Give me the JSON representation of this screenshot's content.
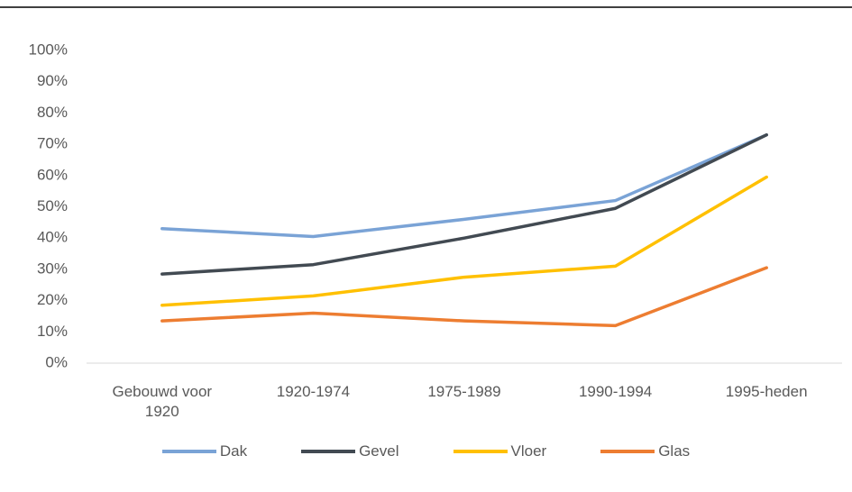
{
  "chart_data": {
    "type": "line",
    "categories": [
      "Gebouwd voor 1920",
      "1920-1974",
      "1975-1989",
      "1990-1994",
      "1995-heden"
    ],
    "series": [
      {
        "name": "Dak",
        "color": "#7aa3d6",
        "values": [
          43,
          40.5,
          46,
          52,
          73
        ]
      },
      {
        "name": "Gevel",
        "color": "#424a52",
        "values": [
          28.5,
          31.5,
          40,
          49.5,
          73
        ]
      },
      {
        "name": "Vloer",
        "color": "#ffc000",
        "values": [
          18.5,
          21.5,
          27.5,
          31,
          59.5
        ]
      },
      {
        "name": "Glas",
        "color": "#ed7d31",
        "values": [
          13.5,
          16,
          13.5,
          12,
          30.5
        ]
      }
    ],
    "ylim": [
      0,
      100
    ],
    "yticks": [
      {
        "value": 0,
        "label": "0%"
      },
      {
        "value": 10,
        "label": "10%"
      },
      {
        "value": 20,
        "label": "20%"
      },
      {
        "value": 30,
        "label": "30%"
      },
      {
        "value": 40,
        "label": "40%"
      },
      {
        "value": 50,
        "label": "50%"
      },
      {
        "value": 60,
        "label": "60%"
      },
      {
        "value": 70,
        "label": "70%"
      },
      {
        "value": 80,
        "label": "80%"
      },
      {
        "value": 90,
        "label": "90%"
      },
      {
        "value": 100,
        "label": "100%"
      }
    ],
    "grid": false,
    "legend": "bottom"
  }
}
